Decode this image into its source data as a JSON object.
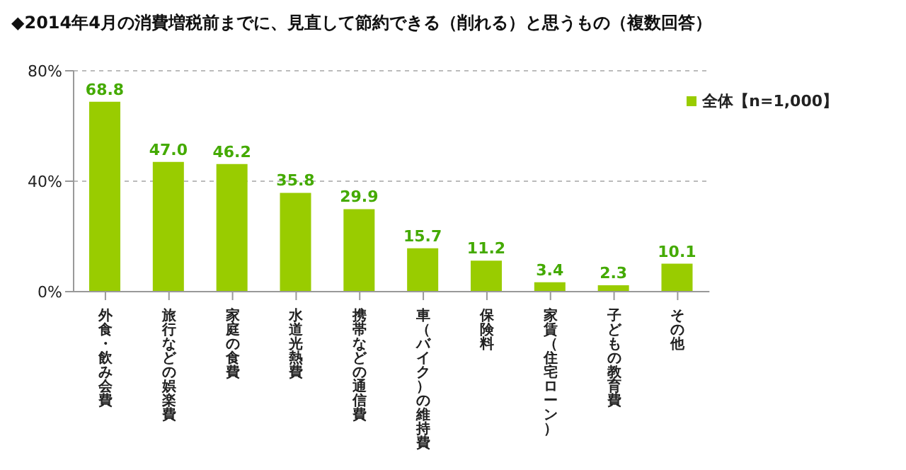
{
  "chart_data": {
    "type": "bar",
    "title": "◆2014年4月の消費増税前までに、見直して節約できる（削れる）と思うもの（複数回答）",
    "categories": [
      "外食・飲み会費",
      "旅行などの娯楽費",
      "家庭の食費",
      "水道光熱費",
      "携帯などの通信費",
      "車（バイク）の維持費",
      "保険料",
      "家賃（住宅ローン）",
      "子どもの教育費",
      "その他"
    ],
    "series": [
      {
        "name": "全体【n=1,000】",
        "color": "#99cc00",
        "values": [
          68.8,
          47.0,
          46.2,
          35.8,
          29.9,
          15.7,
          11.2,
          3.4,
          2.3,
          10.1
        ]
      }
    ],
    "ylim": [
      0,
      80
    ],
    "yticks": [
      {
        "value": 0,
        "label": "0%"
      },
      {
        "value": 40,
        "label": "40%"
      },
      {
        "value": 80,
        "label": "80%"
      }
    ],
    "value_labels": [
      "68.8",
      "47.0",
      "46.2",
      "35.8",
      "29.9",
      "15.7",
      "11.2",
      "3.4",
      "2.3",
      "10.1"
    ],
    "grid": "y",
    "legend": "top right"
  }
}
